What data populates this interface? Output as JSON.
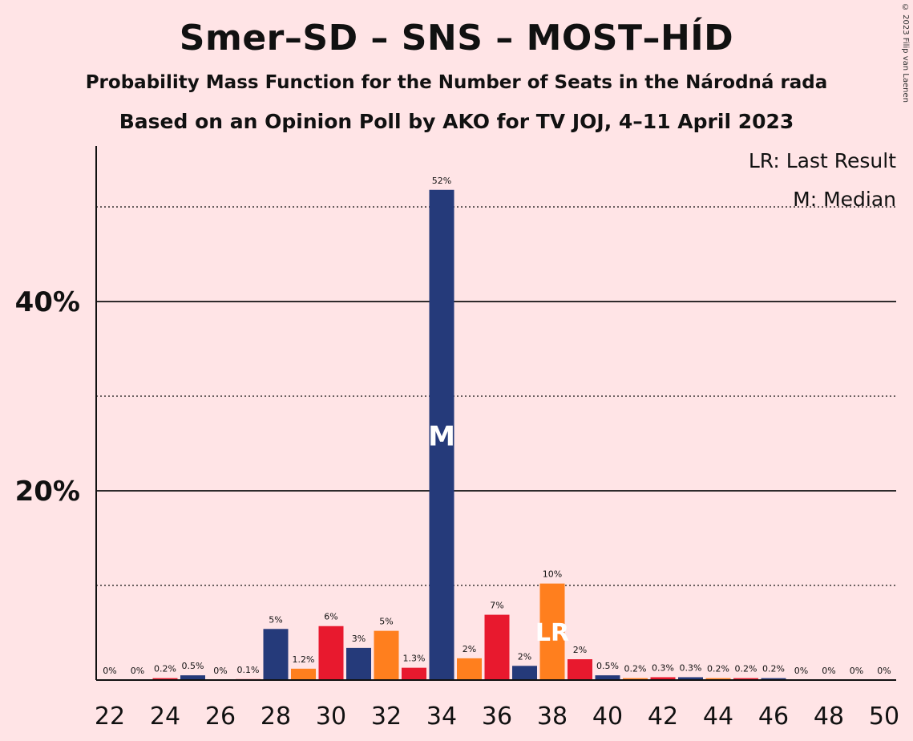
{
  "header": {
    "title": "Smer–SD – SNS – MOST–HÍD",
    "subtitle": "Probability Mass Function for the Number of Seats in the Národná rada",
    "subtitle2": "Based on an Opinion Poll by AKO for TV JOJ, 4–11 April 2023",
    "copyright": "© 2023 Filip van Laenen"
  },
  "legend": {
    "lr": "LR: Last Result",
    "m": "M: Median"
  },
  "colors": {
    "background": "#ffe4e6",
    "navy": "#253a7a",
    "orange": "#ff7f1e",
    "red": "#e8192e",
    "marker_text": "#ffffff"
  },
  "chart_data": {
    "type": "bar",
    "x": [
      22,
      23,
      24,
      25,
      26,
      27,
      28,
      29,
      30,
      31,
      32,
      33,
      34,
      35,
      36,
      37,
      38,
      39,
      40,
      41,
      42,
      43,
      44,
      45,
      46,
      47,
      48,
      49,
      50
    ],
    "values": [
      0,
      0,
      0.2,
      0.5,
      0,
      0.1,
      5.4,
      1.2,
      5.7,
      3.4,
      5.2,
      1.3,
      51.8,
      2.3,
      6.9,
      1.5,
      10.2,
      2.2,
      0.5,
      0.2,
      0.3,
      0.3,
      0.2,
      0.2,
      0.2,
      0,
      0,
      0,
      0
    ],
    "labels": [
      "0%",
      "0%",
      "0.2%",
      "0.5%",
      "0%",
      "0.1%",
      "5%",
      "1.2%",
      "6%",
      "3%",
      "5%",
      "1.3%",
      "52%",
      "2%",
      "7%",
      "2%",
      "10%",
      "2%",
      "0.5%",
      "0.2%",
      "0.3%",
      "0.3%",
      "0.2%",
      "0.2%",
      "0.2%",
      "0%",
      "0%",
      "0%",
      "0%"
    ],
    "color_cycle": [
      "navy",
      "orange",
      "red"
    ],
    "x_ticks": [
      "22",
      "24",
      "26",
      "28",
      "30",
      "32",
      "34",
      "36",
      "38",
      "40",
      "42",
      "44",
      "46",
      "48",
      "50"
    ],
    "y_ticks": [
      "20%",
      "40%"
    ],
    "y_tick_values": [
      20,
      40
    ],
    "y_gridlines_dotted": [
      10,
      30,
      50
    ],
    "ylim": [
      0,
      56
    ],
    "median": {
      "x": 34,
      "label": "M"
    },
    "last_result": {
      "x": 38,
      "label": "LR"
    }
  }
}
